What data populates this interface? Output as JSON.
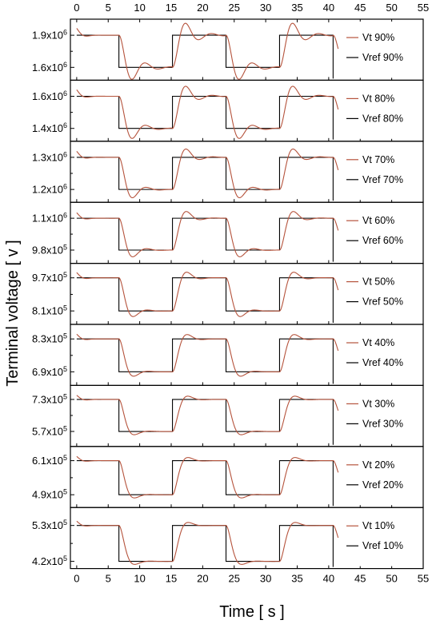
{
  "chart_data": {
    "type": "line",
    "xlabel": "Time [ s ]",
    "ylabel": "Terminal voltage [ v ]",
    "xlim": [
      -1,
      55
    ],
    "xticks": [
      "0",
      "5",
      "10",
      "15",
      "20",
      "25",
      "30",
      "35",
      "40",
      "45",
      "50",
      "55"
    ],
    "colors": {
      "vt": "#b5533c",
      "vref": "#000000",
      "frame": "#000000"
    },
    "reference_steps": {
      "high_start": 0,
      "low_intervals": [
        [
          6.7,
          15.2
        ],
        [
          23.7,
          32.2
        ]
      ],
      "high_intervals": [
        [
          0,
          6.7
        ],
        [
          15.2,
          23.7
        ],
        [
          32.2,
          40.7
        ]
      ],
      "end": 40.7,
      "vt_end": 41.5
    },
    "panels": [
      {
        "pct": "90%",
        "vt_label": "Vt 90%",
        "vref_label": "Vref 90%",
        "high": 1900000.0,
        "low": 1600000.0,
        "ylim": [
          1480000.0,
          2050000.0
        ],
        "yticks": [
          {
            "value": 1900000.0,
            "mantissa": "1.9x10",
            "exp": "6"
          },
          {
            "value": 1600000.0,
            "mantissa": "1.6x10",
            "exp": "6"
          }
        ],
        "overshoot": 0.2
      },
      {
        "pct": "80%",
        "vt_label": "Vt 80%",
        "vref_label": "Vref 80%",
        "high": 1600000.0,
        "low": 1400000.0,
        "ylim": [
          1320000.0,
          1700000.0
        ],
        "yticks": [
          {
            "value": 1600000.0,
            "mantissa": "1.6x10",
            "exp": "6"
          },
          {
            "value": 1400000.0,
            "mantissa": "1.4x10",
            "exp": "6"
          }
        ],
        "overshoot": 0.17
      },
      {
        "pct": "70%",
        "vt_label": "Vt 70%",
        "vref_label": "Vref 70%",
        "high": 1300000.0,
        "low": 1200000.0,
        "ylim": [
          1160000.0,
          1350000.0
        ],
        "yticks": [
          {
            "value": 1300000.0,
            "mantissa": "1.3x10",
            "exp": "6"
          },
          {
            "value": 1200000.0,
            "mantissa": "1.2x10",
            "exp": "6"
          }
        ],
        "overshoot": 0.14
      },
      {
        "pct": "60%",
        "vt_label": "Vt 60%",
        "vref_label": "Vref 60%",
        "high": 1100000.0,
        "low": 980000.0,
        "ylim": [
          930000.0,
          1160000.0
        ],
        "yticks": [
          {
            "value": 1100000.0,
            "mantissa": "1.1x10",
            "exp": "6"
          },
          {
            "value": 980000.0,
            "mantissa": "9.8x10",
            "exp": "5"
          }
        ],
        "overshoot": 0.11
      },
      {
        "pct": "50%",
        "vt_label": "Vt  50%",
        "vref_label": "Vref 50%",
        "high": 970000.0,
        "low": 810000.0,
        "ylim": [
          745000.0,
          1040000.0
        ],
        "yticks": [
          {
            "value": 970000.0,
            "mantissa": "9.7x10",
            "exp": "5"
          },
          {
            "value": 810000.0,
            "mantissa": "8.1x10",
            "exp": "5"
          }
        ],
        "overshoot": 0.08
      },
      {
        "pct": "40%",
        "vt_label": "Vt  40%",
        "vref_label": "Vref 40%",
        "high": 830000.0,
        "low": 690000.0,
        "ylim": [
          632000.0,
          892000.0
        ],
        "yticks": [
          {
            "value": 830000.0,
            "mantissa": "8.3x10",
            "exp": "5"
          },
          {
            "value": 690000.0,
            "mantissa": "6.9x10",
            "exp": "5"
          }
        ],
        "overshoot": 0.05
      },
      {
        "pct": "30%",
        "vt_label": "Vt 30%",
        "vref_label": "Vref 30%",
        "high": 730000.0,
        "low": 570000.0,
        "ylim": [
          495000.0,
          800000.0
        ],
        "yticks": [
          {
            "value": 730000.0,
            "mantissa": "7.3x10",
            "exp": "5"
          },
          {
            "value": 570000.0,
            "mantissa": "5.7x10",
            "exp": "5"
          }
        ],
        "overshoot": 0.02
      },
      {
        "pct": "20%",
        "vt_label": "Vt 20%",
        "vref_label": "Vref 20%",
        "high": 610000.0,
        "low": 490000.0,
        "ylim": [
          445000.0,
          660000.0
        ],
        "yticks": [
          {
            "value": 610000.0,
            "mantissa": "6.1x10",
            "exp": "5"
          },
          {
            "value": 490000.0,
            "mantissa": "4.9x10",
            "exp": "5"
          }
        ],
        "overshoot": 0.01
      },
      {
        "pct": "10%",
        "vt_label": "Vt 10%",
        "vref_label": "Vref 10%",
        "high": 530000.0,
        "low": 420000.0,
        "ylim": [
          398000.0,
          585000.0
        ],
        "yticks": [
          {
            "value": 530000.0,
            "mantissa": "5.3x10",
            "exp": "5"
          },
          {
            "value": 420000.0,
            "mantissa": "4.2x10",
            "exp": "5"
          }
        ],
        "overshoot": 0.0
      }
    ]
  }
}
